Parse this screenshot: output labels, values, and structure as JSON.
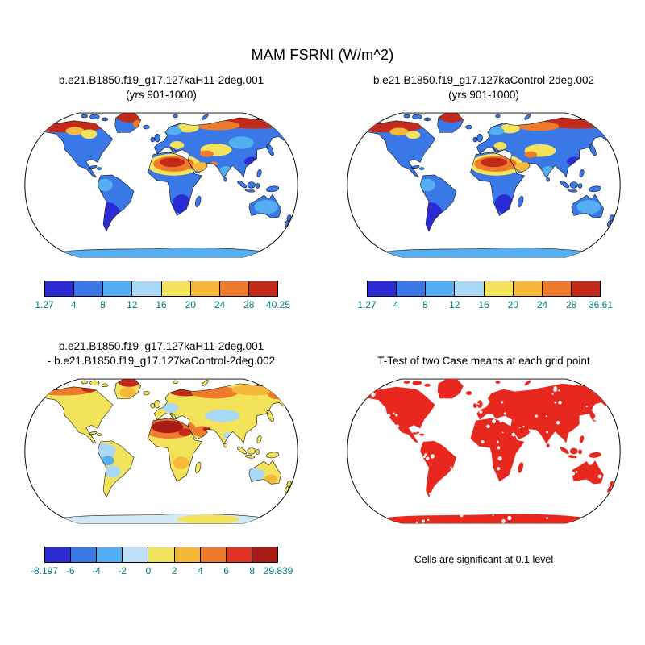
{
  "page": {
    "background": "#ffffff"
  },
  "chart_data": {
    "type": "heatmap",
    "title": "MAM FSRNI (W/m^2)",
    "projection": "Robinson",
    "tick_color": "#007a7a",
    "ocean_color": "#ffffff",
    "panels": [
      {
        "name": "case1",
        "title_lines": [
          "b.e21.B1850.f19_g17.127kaH11-2deg.001",
          "(yrs 901-1000)"
        ],
        "data_min": 1.27,
        "data_max": 40.25,
        "colorbar": {
          "labels": [
            "1.27",
            "4",
            "8",
            "12",
            "16",
            "20",
            "24",
            "28",
            "40.25"
          ],
          "colors": [
            "#2b2bd5",
            "#3a78e8",
            "#54aef2",
            "#a9d9f6",
            "#f3e35b",
            "#f6b83a",
            "#f07a2c",
            "#c42a1a"
          ]
        },
        "map": {
          "base": "#3a78e8",
          "coast": true,
          "speckles": false,
          "patches": [
            [
              180,
              184,
              162,
              13,
              "#54aef2"
            ],
            [
              60,
              24,
              48,
              9,
              "#c42a1a"
            ],
            [
              22,
              29,
              10,
              6,
              "#f07a2c"
            ],
            [
              70,
              31,
              12,
              5,
              "#f6b83a"
            ],
            [
              88,
              35,
              10,
              6,
              "#f3e35b"
            ],
            [
              139,
              13,
              16,
              7,
              "#c42a1a"
            ],
            [
              150,
              22,
              6,
              5,
              "#f07a2c"
            ],
            [
              300,
              20,
              50,
              8,
              "#c42a1a"
            ],
            [
              252,
              24,
              28,
              6,
              "#f07a2c"
            ],
            [
              214,
              27,
              14,
              6,
              "#f3e35b"
            ],
            [
              196,
              31,
              10,
              5,
              "#54aef2"
            ],
            [
              200,
              49,
              9,
              5,
              "#f3e35b"
            ],
            [
              250,
              55,
              20,
              8,
              "#f3e35b"
            ],
            [
              238,
              60,
              9,
              4,
              "#f07a2c"
            ],
            [
              282,
              46,
              16,
              8,
              "#54aef2"
            ],
            [
              196,
              74,
              34,
              14,
              "#f3e35b"
            ],
            [
              196,
              73,
              26,
              10,
              "#f07a2c"
            ],
            [
              194,
              71,
              16,
              6,
              "#c42a1a"
            ],
            [
              231,
              77,
              11,
              6,
              "#f6b83a"
            ],
            [
              247,
              73,
              5,
              3,
              "#f07a2c"
            ],
            [
              108,
              100,
              10,
              8,
              "#54aef2"
            ],
            [
              112,
              140,
              16,
              18,
              "#2b2bd5"
            ],
            [
              206,
              124,
              12,
              12,
              "#2b2bd5"
            ],
            [
              314,
              128,
              15,
              9,
              "#54aef2"
            ],
            [
              262,
              82,
              8,
              6,
              "#54aef2"
            ],
            [
              296,
              70,
              10,
              6,
              "#2b2bd5"
            ]
          ]
        }
      },
      {
        "name": "case2",
        "title_lines": [
          "b.e21.B1850.f19_g17.127kaControl-2deg.002",
          "(yrs 901-1000)"
        ],
        "data_min": 1.27,
        "data_max": 36.61,
        "colorbar": {
          "labels": [
            "1.27",
            "4",
            "8",
            "12",
            "16",
            "20",
            "24",
            "28",
            "36.61"
          ],
          "colors": [
            "#2b2bd5",
            "#3a78e8",
            "#54aef2",
            "#a9d9f6",
            "#f3e35b",
            "#f6b83a",
            "#f07a2c",
            "#c42a1a"
          ]
        },
        "map": {
          "base": "#3a78e8",
          "coast": true,
          "speckles": false,
          "patches": [
            [
              180,
              184,
              162,
              13,
              "#54aef2"
            ],
            [
              58,
              24,
              46,
              9,
              "#c42a1a"
            ],
            [
              22,
              29,
              10,
              6,
              "#f07a2c"
            ],
            [
              72,
              32,
              12,
              5,
              "#f6b83a"
            ],
            [
              90,
              36,
              9,
              5,
              "#f3e35b"
            ],
            [
              139,
              13,
              16,
              7,
              "#c42a1a"
            ],
            [
              300,
              20,
              50,
              8,
              "#c42a1a"
            ],
            [
              250,
              25,
              26,
              6,
              "#f07a2c"
            ],
            [
              213,
              28,
              13,
              6,
              "#f3e35b"
            ],
            [
              196,
              31,
              10,
              5,
              "#54aef2"
            ],
            [
              201,
              50,
              8,
              5,
              "#f3e35b"
            ],
            [
              252,
              56,
              20,
              8,
              "#f3e35b"
            ],
            [
              240,
              61,
              8,
              4,
              "#f07a2c"
            ],
            [
              196,
              74,
              34,
              14,
              "#f3e35b"
            ],
            [
              195,
              73,
              27,
              10,
              "#f07a2c"
            ],
            [
              193,
              71,
              17,
              6,
              "#c42a1a"
            ],
            [
              231,
              77,
              11,
              6,
              "#f6b83a"
            ],
            [
              108,
              100,
              10,
              8,
              "#54aef2"
            ],
            [
              112,
              140,
              16,
              18,
              "#2b2bd5"
            ],
            [
              206,
              124,
              12,
              12,
              "#2b2bd5"
            ],
            [
              314,
              128,
              15,
              9,
              "#54aef2"
            ],
            [
              262,
              82,
              8,
              6,
              "#54aef2"
            ],
            [
              296,
              70,
              10,
              6,
              "#2b2bd5"
            ]
          ]
        }
      },
      {
        "name": "difference",
        "title_lines": [
          "b.e21.B1850.f19_g17.127kaH11-2deg.001",
          "- b.e21.B1850.f19_g17.127kaControl-2deg.002"
        ],
        "data_min": -8.197,
        "data_max": 29.839,
        "colorbar": {
          "labels": [
            "-8.197",
            "-6",
            "-4",
            "-2",
            "0",
            "2",
            "4",
            "6",
            "8",
            "29.839"
          ],
          "colors": [
            "#2b2bd5",
            "#3a78e8",
            "#54aef2",
            "#bfe0f7",
            "#f3e35b",
            "#f6b83a",
            "#f07a2c",
            "#e03224",
            "#a81c15"
          ]
        },
        "map": {
          "base": "#f3e35b",
          "coast": true,
          "speckles": false,
          "patches": [
            [
              180,
              184,
              162,
              13,
              "#cfe9f7"
            ],
            [
              240,
              187,
              40,
              6,
              "#f3e35b"
            ],
            [
              55,
              21,
              42,
              8,
              "#f07a2c"
            ],
            [
              38,
              18,
              12,
              5,
              "#c42a1a"
            ],
            [
              88,
              20,
              10,
              5,
              "#c42a1a"
            ],
            [
              139,
              12,
              14,
              6,
              "#c42a1a"
            ],
            [
              137,
              25,
              10,
              7,
              "#f6b83a"
            ],
            [
              212,
              21,
              26,
              9,
              "#c42a1a"
            ],
            [
              248,
              25,
              30,
              8,
              "#f07a2c"
            ],
            [
              300,
              22,
              30,
              7,
              "#f6b83a"
            ],
            [
              330,
              28,
              14,
              6,
              "#f07a2c"
            ],
            [
              192,
              45,
              10,
              6,
              "#a9d9f6"
            ],
            [
              258,
              55,
              22,
              8,
              "#a9d9f6"
            ],
            [
              190,
              71,
              34,
              13,
              "#f07a2c"
            ],
            [
              188,
              69,
              20,
              8,
              "#a81c15"
            ],
            [
              210,
              76,
              8,
              5,
              "#c42a1a"
            ],
            [
              232,
              75,
              12,
              7,
              "#f07a2c"
            ],
            [
              238,
              72,
              5,
              3,
              "#c42a1a"
            ],
            [
              108,
              100,
              14,
              10,
              "#a9d9f6"
            ],
            [
              112,
              112,
              8,
              6,
              "#54aef2"
            ],
            [
              118,
              126,
              10,
              8,
              "#a9d9f6"
            ],
            [
              205,
              115,
              10,
              8,
              "#f6b83a"
            ],
            [
              300,
              130,
              12,
              8,
              "#a9d9f6"
            ],
            [
              320,
              136,
              8,
              6,
              "#f6b83a"
            ],
            [
              265,
              80,
              6,
              4,
              "#a9d9f6"
            ]
          ]
        }
      },
      {
        "name": "ttest",
        "title_lines": [
          "T-Test of two Case means at each grid point"
        ],
        "caption": "Cells are significant at 0.1 level",
        "map": {
          "base": "#e8281e",
          "coast": false,
          "speckles": true,
          "patches": []
        }
      }
    ]
  }
}
